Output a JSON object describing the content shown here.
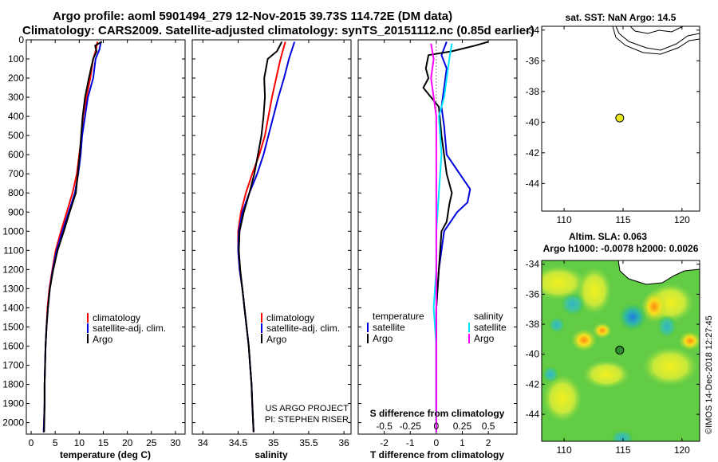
{
  "titles": {
    "line1": "Argo profile: aoml 5901494_279 12-Nov-2015 39.73S 114.72E (DM data)",
    "line2": "Climatology: CARS2009. Satellite-adjusted climatology: synTS_20151112.nc (0.85d earlier)"
  },
  "colors": {
    "climatology": "#ff0000",
    "satellite": "#0000dd",
    "argo": "#000000",
    "s_satellite": "#00e5ff",
    "s_argo": "#ff00ff"
  },
  "chart_data": [
    {
      "type": "line",
      "id": "temperature",
      "xlabel": "temperature (deg C)",
      "ylim": [
        0,
        2060
      ],
      "xlim": [
        -1,
        32
      ],
      "xticks": [
        0,
        5,
        10,
        15,
        20,
        25,
        30
      ],
      "yticks": [
        0,
        100,
        200,
        300,
        400,
        500,
        600,
        700,
        800,
        900,
        1000,
        1100,
        1200,
        1300,
        1400,
        1500,
        1600,
        1700,
        1800,
        1900,
        2000
      ],
      "legend": [
        "climatology",
        "satellite-adj. clim.",
        "Argo"
      ],
      "series": [
        {
          "name": "climatology",
          "color": "#ff0000",
          "points": [
            [
              13.8,
              10
            ],
            [
              13.5,
              50
            ],
            [
              12.9,
              100
            ],
            [
              12.3,
              200
            ],
            [
              11.5,
              300
            ],
            [
              10.8,
              400
            ],
            [
              10.5,
              500
            ],
            [
              10,
              600
            ],
            [
              9.5,
              700
            ],
            [
              8.6,
              800
            ],
            [
              7.4,
              900
            ],
            [
              6.2,
              1000
            ],
            [
              5.1,
              1100
            ],
            [
              4.4,
              1200
            ],
            [
              3.8,
              1300
            ],
            [
              3.4,
              1400
            ],
            [
              3.2,
              1500
            ],
            [
              3,
              1600
            ],
            [
              2.9,
              1700
            ],
            [
              2.8,
              1800
            ],
            [
              2.8,
              1900
            ],
            [
              2.6,
              2050
            ]
          ]
        },
        {
          "name": "satellite-adj. clim.",
          "color": "#0000dd",
          "points": [
            [
              14.5,
              10
            ],
            [
              14.2,
              50
            ],
            [
              13.4,
              100
            ],
            [
              12.9,
              200
            ],
            [
              11.8,
              300
            ],
            [
              11.2,
              400
            ],
            [
              10.6,
              500
            ],
            [
              10.3,
              600
            ],
            [
              9.8,
              700
            ],
            [
              9.1,
              800
            ],
            [
              7.8,
              900
            ],
            [
              6.5,
              1000
            ],
            [
              5.3,
              1100
            ],
            [
              4.5,
              1200
            ],
            [
              3.9,
              1300
            ],
            [
              3.5,
              1400
            ],
            [
              3.2,
              1500
            ],
            [
              3,
              1600
            ],
            [
              2.9,
              1700
            ],
            [
              2.8,
              1800
            ],
            [
              2.8,
              1900
            ],
            [
              2.6,
              2050
            ]
          ]
        },
        {
          "name": "Argo",
          "color": "#000000",
          "points": [
            [
              14.7,
              10
            ],
            [
              13.3,
              30
            ],
            [
              13.6,
              60
            ],
            [
              12.9,
              100
            ],
            [
              12,
              200
            ],
            [
              11.2,
              300
            ],
            [
              10.7,
              400
            ],
            [
              10.4,
              500
            ],
            [
              10.1,
              600
            ],
            [
              9.7,
              700
            ],
            [
              9.3,
              800
            ],
            [
              8,
              900
            ],
            [
              6.8,
              1000
            ],
            [
              5.5,
              1100
            ],
            [
              4.6,
              1200
            ],
            [
              3.9,
              1300
            ],
            [
              3.5,
              1400
            ],
            [
              3.2,
              1500
            ],
            [
              3,
              1600
            ],
            [
              2.9,
              1700
            ],
            [
              2.8,
              1800
            ],
            [
              2.8,
              1900
            ],
            [
              2.7,
              2050
            ]
          ]
        }
      ]
    },
    {
      "type": "line",
      "id": "salinity",
      "xlabel": "salinity",
      "ylim": [
        0,
        2060
      ],
      "xlim": [
        33.85,
        36.1
      ],
      "xticks": [
        34,
        34.5,
        35,
        35.5,
        36
      ],
      "legend": [
        "climatology",
        "satellite-adj. clim.",
        "Argo"
      ],
      "source_text": [
        "US ARGO PROJECT",
        "PI: STEPHEN RISER"
      ],
      "series": [
        {
          "name": "climatology",
          "color": "#ff0000",
          "points": [
            [
              35.17,
              10
            ],
            [
              35.1,
              100
            ],
            [
              35.04,
              200
            ],
            [
              34.98,
              300
            ],
            [
              34.93,
              400
            ],
            [
              34.88,
              500
            ],
            [
              34.8,
              600
            ],
            [
              34.7,
              700
            ],
            [
              34.61,
              800
            ],
            [
              34.54,
              900
            ],
            [
              34.5,
              1000
            ],
            [
              34.5,
              1100
            ],
            [
              34.52,
              1200
            ],
            [
              34.56,
              1300
            ],
            [
              34.59,
              1400
            ],
            [
              34.62,
              1500
            ],
            [
              34.65,
              1600
            ],
            [
              34.67,
              1700
            ],
            [
              34.69,
              1800
            ],
            [
              34.7,
              1900
            ],
            [
              34.72,
              2050
            ]
          ]
        },
        {
          "name": "satellite-adj. clim.",
          "color": "#0000dd",
          "points": [
            [
              35.3,
              10
            ],
            [
              35.22,
              100
            ],
            [
              35.15,
              200
            ],
            [
              35.07,
              300
            ],
            [
              35,
              400
            ],
            [
              34.93,
              500
            ],
            [
              34.86,
              600
            ],
            [
              34.77,
              700
            ],
            [
              34.66,
              800
            ],
            [
              34.56,
              900
            ],
            [
              34.51,
              1000
            ],
            [
              34.5,
              1100
            ],
            [
              34.52,
              1200
            ],
            [
              34.56,
              1300
            ],
            [
              34.59,
              1400
            ],
            [
              34.62,
              1500
            ],
            [
              34.65,
              1600
            ],
            [
              34.67,
              1700
            ],
            [
              34.69,
              1800
            ],
            [
              34.7,
              1900
            ],
            [
              34.72,
              2050
            ]
          ]
        },
        {
          "name": "Argo",
          "color": "#000000",
          "points": [
            [
              35.12,
              10
            ],
            [
              35.05,
              60
            ],
            [
              34.92,
              100
            ],
            [
              34.87,
              200
            ],
            [
              34.88,
              300
            ],
            [
              34.86,
              400
            ],
            [
              34.83,
              500
            ],
            [
              34.78,
              600
            ],
            [
              34.73,
              700
            ],
            [
              34.66,
              800
            ],
            [
              34.58,
              900
            ],
            [
              34.52,
              1000
            ],
            [
              34.51,
              1100
            ],
            [
              34.53,
              1200
            ],
            [
              34.56,
              1300
            ],
            [
              34.59,
              1400
            ],
            [
              34.62,
              1500
            ],
            [
              34.65,
              1600
            ],
            [
              34.67,
              1700
            ],
            [
              34.69,
              1800
            ],
            [
              34.7,
              1900
            ],
            [
              34.72,
              2050
            ]
          ]
        }
      ]
    },
    {
      "type": "line",
      "id": "differences",
      "xlabel": "T difference from climatology",
      "xlabel_top": "S difference from climatology",
      "ylim": [
        0,
        2060
      ],
      "xlim": [
        -3,
        3.1
      ],
      "xticks": [
        -2,
        -1,
        0,
        1,
        2
      ],
      "s_ticks": [
        {
          "label": "-0.5",
          "pos": -2
        },
        {
          "label": "-0.25",
          "pos": -1
        },
        {
          "label": "0",
          "pos": 0
        },
        {
          "label": "0.25",
          "pos": 1
        },
        {
          "label": "0.5",
          "pos": 2
        }
      ],
      "legend_left_title": "temperature",
      "legend_right_title": "salinity",
      "legend_left": [
        "satellite",
        "Argo"
      ],
      "legend_right": [
        "satellite",
        "Argo"
      ],
      "series": [
        {
          "name": "T satellite",
          "color": "#0000dd",
          "points": [
            [
              0.4,
              10
            ],
            [
              0.2,
              80
            ],
            [
              0.4,
              150
            ],
            [
              0.3,
              250
            ],
            [
              0.2,
              350
            ],
            [
              0.3,
              450
            ],
            [
              0.4,
              600
            ],
            [
              0.9,
              700
            ],
            [
              1.3,
              780
            ],
            [
              1.2,
              850
            ],
            [
              0.8,
              900
            ],
            [
              0.3,
              1000
            ],
            [
              0.1,
              1200
            ],
            [
              0,
              1400
            ],
            [
              0,
              1600
            ],
            [
              0,
              1800
            ],
            [
              0,
              2050
            ]
          ]
        },
        {
          "name": "T Argo",
          "color": "#000000",
          "points": [
            [
              2,
              10
            ],
            [
              1.5,
              30
            ],
            [
              0.6,
              60
            ],
            [
              -0.3,
              80
            ],
            [
              -0.4,
              150
            ],
            [
              -0.3,
              200
            ],
            [
              -0.5,
              250
            ],
            [
              -0.2,
              300
            ],
            [
              0.1,
              350
            ],
            [
              0.2,
              500
            ],
            [
              0.4,
              700
            ],
            [
              0.6,
              800
            ],
            [
              0.5,
              860
            ],
            [
              0.4,
              950
            ],
            [
              0.2,
              1000
            ],
            [
              0.1,
              1200
            ],
            [
              0,
              1400
            ],
            [
              0,
              1600
            ],
            [
              0,
              1800
            ],
            [
              0,
              2050
            ]
          ]
        },
        {
          "name": "S satellite",
          "color": "#00e5ff",
          "points": [
            [
              0.6,
              20
            ],
            [
              0.5,
              100
            ],
            [
              0.4,
              200
            ],
            [
              0.3,
              300
            ],
            [
              0.1,
              400
            ],
            [
              0.2,
              600
            ],
            [
              0.1,
              800
            ],
            [
              0,
              1000
            ],
            [
              0,
              1200
            ],
            [
              -0.1,
              1400
            ],
            [
              0,
              1600
            ],
            [
              0,
              1800
            ],
            [
              0,
              2050
            ]
          ]
        },
        {
          "name": "S Argo",
          "color": "#ff00ff",
          "points": [
            [
              -0.2,
              20
            ],
            [
              -0.1,
              100
            ],
            [
              -0.2,
              200
            ],
            [
              -0.1,
              300
            ],
            [
              0,
              400
            ],
            [
              0,
              600
            ],
            [
              0,
              800
            ],
            [
              0,
              1000
            ],
            [
              0,
              2050
            ]
          ]
        }
      ]
    }
  ],
  "maps": {
    "top": {
      "title": "sat. SST: NaN Argo: 14.5",
      "lat_ticks": [
        "-34",
        "-36",
        "-38",
        "-40",
        "-42",
        "-44"
      ],
      "lon_ticks": [
        "110",
        "115",
        "120"
      ],
      "argo_marker": {
        "lon": 114.72,
        "lat": -39.73
      }
    },
    "bottom": {
      "title1": "Altim. SLA: 0.063",
      "title2": "Argo h1000: -0.0078 h2000: 0.0026",
      "lat_ticks": [
        "-34",
        "-36",
        "-38",
        "-40",
        "-42",
        "-44"
      ],
      "lon_ticks": [
        "110",
        "115",
        "120"
      ],
      "argo_marker": {
        "lon": 114.72,
        "lat": -39.73
      }
    }
  },
  "watermark": "©IMOS 14-Dec-2018 12:27:45"
}
